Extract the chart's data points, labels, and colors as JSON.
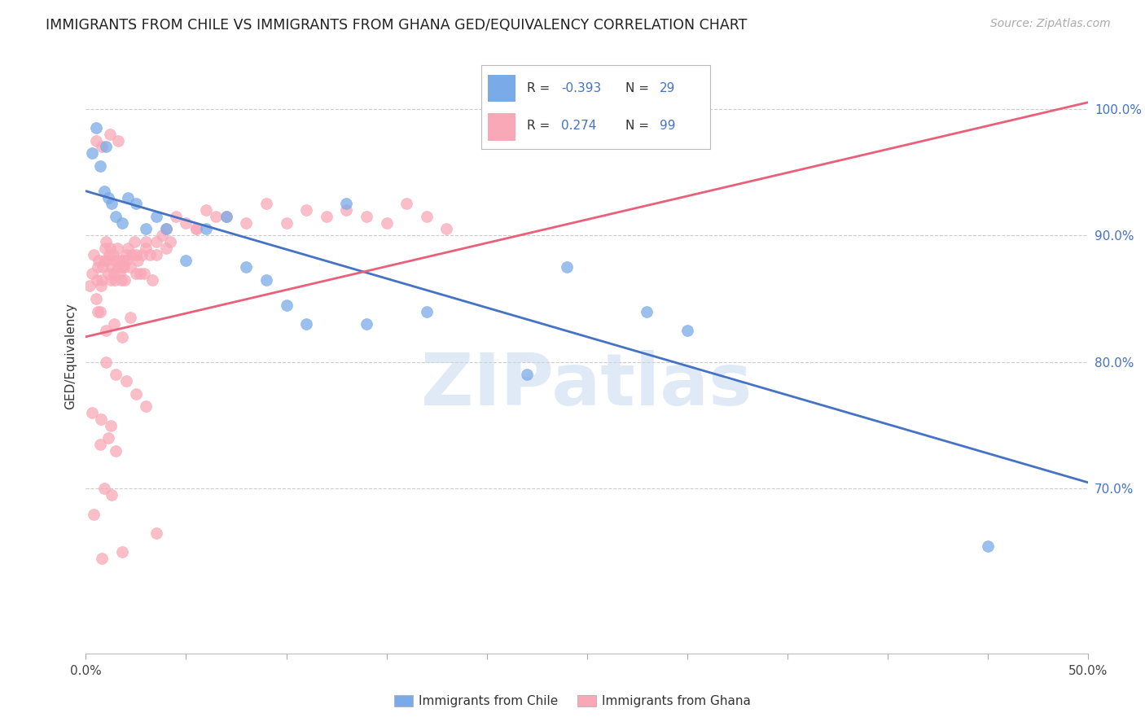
{
  "title": "IMMIGRANTS FROM CHILE VS IMMIGRANTS FROM GHANA GED/EQUIVALENCY CORRELATION CHART",
  "source": "Source: ZipAtlas.com",
  "ylabel": "GED/Equivalency",
  "xlim": [
    0.0,
    50.0
  ],
  "ylim": [
    57.0,
    104.0
  ],
  "yticks": [
    70.0,
    80.0,
    90.0,
    100.0
  ],
  "xticks": [
    0.0,
    5.0,
    10.0,
    15.0,
    20.0,
    25.0,
    30.0,
    35.0,
    40.0,
    45.0,
    50.0
  ],
  "chile_R": -0.393,
  "chile_N": 29,
  "ghana_R": 0.274,
  "ghana_N": 99,
  "chile_color": "#7AABE8",
  "ghana_color": "#F9A8B8",
  "chile_line_color": "#4472C4",
  "ghana_line_color": "#E8607A",
  "watermark": "ZIPatlas",
  "chile_trend_x0": 0.0,
  "chile_trend_y0": 93.5,
  "chile_trend_x1": 50.0,
  "chile_trend_y1": 70.5,
  "ghana_trend_x0": 0.0,
  "ghana_trend_y0": 82.0,
  "ghana_trend_x1": 50.0,
  "ghana_trend_y1": 100.5,
  "chile_x": [
    0.3,
    0.5,
    0.7,
    0.9,
    1.1,
    1.3,
    1.5,
    1.8,
    2.1,
    2.5,
    3.0,
    3.5,
    4.0,
    5.0,
    6.0,
    7.0,
    8.0,
    9.0,
    10.0,
    11.0,
    13.0,
    14.0,
    17.0,
    22.0,
    24.0,
    28.0,
    30.0,
    1.0,
    45.0
  ],
  "chile_y": [
    96.5,
    98.5,
    95.5,
    93.5,
    93.0,
    92.5,
    91.5,
    91.0,
    93.0,
    92.5,
    90.5,
    91.5,
    90.5,
    88.0,
    90.5,
    91.5,
    87.5,
    86.5,
    84.5,
    83.0,
    92.5,
    83.0,
    84.0,
    79.0,
    87.5,
    84.0,
    82.5,
    97.0,
    65.5
  ],
  "ghana_x": [
    0.2,
    0.3,
    0.4,
    0.5,
    0.55,
    0.6,
    0.65,
    0.7,
    0.75,
    0.8,
    0.85,
    0.9,
    0.95,
    1.0,
    1.05,
    1.1,
    1.15,
    1.2,
    1.25,
    1.3,
    1.35,
    1.4,
    1.45,
    1.5,
    1.55,
    1.6,
    1.65,
    1.7,
    1.75,
    1.8,
    1.85,
    1.9,
    1.95,
    2.0,
    2.1,
    2.2,
    2.3,
    2.4,
    2.5,
    2.6,
    2.7,
    2.8,
    2.9,
    3.0,
    3.2,
    3.5,
    3.8,
    4.0,
    4.5,
    5.0,
    5.5,
    6.0,
    6.5,
    7.0,
    8.0,
    9.0,
    10.0,
    11.0,
    12.0,
    13.0,
    14.0,
    15.0,
    16.0,
    17.0,
    18.0,
    0.5,
    0.8,
    1.2,
    1.6,
    0.6,
    1.0,
    1.4,
    1.8,
    0.7,
    1.1,
    1.5,
    0.4,
    0.9,
    1.3,
    0.3,
    0.75,
    1.25,
    3.3,
    2.2,
    1.0,
    1.5,
    2.0,
    2.5,
    3.0,
    0.8,
    1.8,
    3.5,
    4.2,
    5.5,
    2.0,
    2.5,
    3.0,
    3.5,
    4.0
  ],
  "ghana_y": [
    86.0,
    87.0,
    88.5,
    85.0,
    86.5,
    87.5,
    88.0,
    84.0,
    86.0,
    86.5,
    87.5,
    88.0,
    89.0,
    89.5,
    88.0,
    87.0,
    88.5,
    89.0,
    86.5,
    87.5,
    88.5,
    87.0,
    86.5,
    88.0,
    89.0,
    87.5,
    88.0,
    87.0,
    86.5,
    87.5,
    88.0,
    87.5,
    86.5,
    88.5,
    89.0,
    87.5,
    88.5,
    89.5,
    87.0,
    88.0,
    87.0,
    88.5,
    87.0,
    89.5,
    88.5,
    89.5,
    90.0,
    90.5,
    91.5,
    91.0,
    90.5,
    92.0,
    91.5,
    91.5,
    91.0,
    92.5,
    91.0,
    92.0,
    91.5,
    92.0,
    91.5,
    91.0,
    92.5,
    91.5,
    90.5,
    97.5,
    97.0,
    98.0,
    97.5,
    84.0,
    82.5,
    83.0,
    82.0,
    73.5,
    74.0,
    73.0,
    68.0,
    70.0,
    69.5,
    76.0,
    75.5,
    75.0,
    86.5,
    83.5,
    80.0,
    79.0,
    78.5,
    77.5,
    76.5,
    64.5,
    65.0,
    66.5,
    89.5,
    90.5,
    88.0,
    88.5,
    89.0,
    88.5,
    89.0
  ]
}
